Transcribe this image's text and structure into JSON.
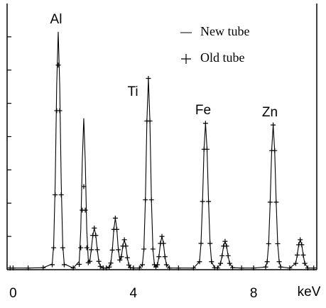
{
  "chart_data": {
    "type": "line",
    "xlabel": "keV",
    "annotations": [
      "Al",
      "Ti",
      "Fe",
      "Zn"
    ],
    "x": [
      -0.1,
      0,
      0.5,
      1.0,
      1.3,
      1.35,
      1.4,
      1.45,
      1.5,
      1.55,
      1.6,
      1.65,
      1.7,
      2.0,
      2.2,
      2.25,
      2.3,
      2.35,
      2.4,
      2.45,
      2.5,
      2.55,
      2.6,
      2.65,
      2.7,
      2.75,
      2.8,
      2.85,
      2.9,
      3.0,
      3.1,
      3.2,
      3.25,
      3.3,
      3.35,
      3.4,
      3.45,
      3.5,
      3.55,
      3.6,
      3.65,
      3.7,
      3.75,
      3.8,
      3.85,
      3.9,
      4.0,
      4.2,
      4.3,
      4.35,
      4.4,
      4.45,
      4.5,
      4.55,
      4.6,
      4.65,
      4.7,
      4.75,
      4.8,
      4.85,
      4.9,
      4.95,
      5.0,
      5.05,
      5.1,
      5.2,
      5.5,
      6.0,
      6.2,
      6.25,
      6.3,
      6.35,
      6.4,
      6.45,
      6.5,
      6.55,
      6.6,
      6.7,
      6.8,
      6.9,
      6.95,
      7.0,
      7.05,
      7.1,
      7.15,
      7.2,
      7.3,
      7.6,
      8.0,
      8.4,
      8.45,
      8.5,
      8.55,
      8.6,
      8.65,
      8.7,
      8.75,
      8.8,
      8.85,
      8.9,
      9.2,
      9.4,
      9.45,
      9.5,
      9.55,
      9.6,
      9.65,
      9.7,
      9.8,
      10.0
    ],
    "series": [
      {
        "name": "New tube",
        "color": "#000000",
        "marker": "line",
        "values": [
          0.05,
          0.05,
          0.05,
          0.06,
          0.17,
          0.76,
          2.61,
          5.55,
          7.15,
          5.55,
          2.61,
          0.76,
          0.17,
          0.05,
          0.25,
          1.18,
          3.25,
          4.55,
          3.25,
          1.18,
          0.3,
          0.25,
          0.6,
          1.03,
          1.25,
          1.03,
          0.6,
          0.25,
          0.1,
          0.05,
          0.05,
          0.08,
          0.2,
          0.59,
          1.21,
          1.55,
          1.21,
          0.6,
          0.29,
          0.39,
          0.71,
          0.9,
          0.71,
          0.36,
          0.14,
          0.06,
          0.05,
          0.05,
          0.15,
          0.62,
          2.1,
          4.47,
          5.75,
          4.47,
          2.1,
          0.62,
          0.15,
          0.08,
          0.15,
          0.39,
          0.79,
          1.0,
          0.79,
          0.39,
          0.15,
          0.05,
          0.05,
          0.05,
          0.24,
          0.79,
          2.05,
          3.62,
          4.4,
          3.62,
          2.05,
          0.79,
          0.24,
          0.06,
          0.05,
          0.19,
          0.42,
          0.71,
          0.85,
          0.71,
          0.42,
          0.19,
          0.06,
          0.05,
          0.05,
          0.08,
          0.24,
          0.78,
          2.03,
          3.58,
          4.35,
          3.58,
          2.03,
          0.78,
          0.24,
          0.08,
          0.05,
          0.19,
          0.44,
          0.75,
          0.9,
          0.75,
          0.44,
          0.19,
          0.05,
          0.05
        ]
      },
      {
        "name": "Old tube",
        "color": "#000000",
        "marker": "plus",
        "values": [
          0.05,
          0.05,
          0.05,
          0.06,
          0.15,
          0.66,
          2.25,
          4.78,
          6.15,
          4.78,
          2.25,
          0.66,
          0.15,
          0.05,
          0.16,
          0.66,
          1.79,
          2.5,
          1.79,
          0.66,
          0.21,
          0.25,
          0.6,
          1.03,
          1.25,
          1.03,
          0.6,
          0.25,
          0.1,
          0.05,
          0.05,
          0.08,
          0.2,
          0.59,
          1.21,
          1.55,
          1.21,
          0.6,
          0.29,
          0.39,
          0.71,
          0.9,
          0.71,
          0.36,
          0.14,
          0.06,
          0.05,
          0.05,
          0.15,
          0.62,
          2.1,
          4.47,
          5.75,
          4.47,
          2.1,
          0.62,
          0.15,
          0.08,
          0.15,
          0.39,
          0.79,
          1.0,
          0.79,
          0.39,
          0.15,
          0.05,
          0.05,
          0.05,
          0.24,
          0.79,
          2.05,
          3.62,
          4.4,
          3.62,
          2.05,
          0.79,
          0.24,
          0.06,
          0.05,
          0.19,
          0.42,
          0.71,
          0.85,
          0.71,
          0.42,
          0.19,
          0.06,
          0.05,
          0.05,
          0.08,
          0.24,
          0.78,
          2.03,
          3.58,
          4.35,
          3.58,
          2.03,
          0.78,
          0.24,
          0.08,
          0.05,
          0.19,
          0.44,
          0.75,
          0.9,
          0.75,
          0.44,
          0.19,
          0.05,
          0.05
        ]
      }
    ],
    "xlim": [
      -0.2,
      10.1
    ],
    "xticks": [
      0,
      4,
      8
    ],
    "ylim": [
      0,
      8
    ],
    "yticks": [
      1,
      2,
      3,
      4,
      5,
      6,
      7
    ],
    "legend": "upper right"
  }
}
